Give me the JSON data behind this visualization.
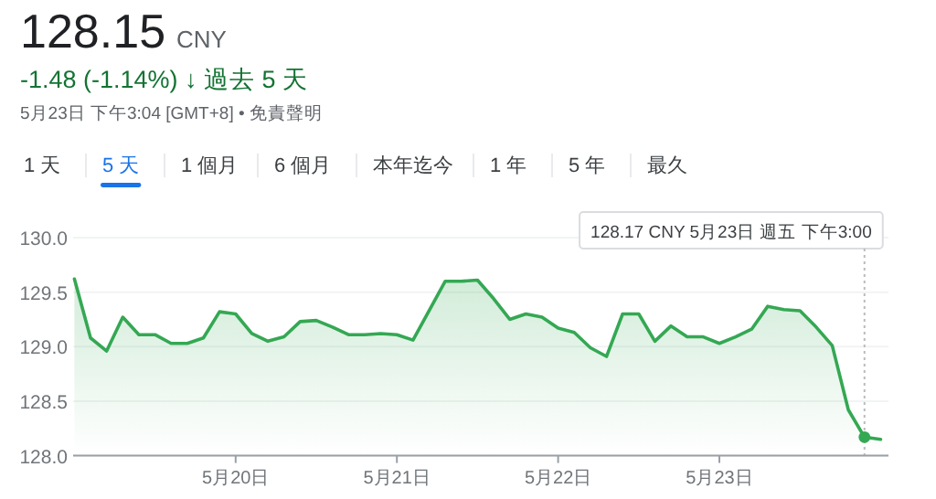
{
  "chart_data": {
    "type": "area",
    "title": "128.15",
    "subtitle": "-1.48 (-1.14%) ↓ 過去 5 天",
    "annotations": [
      "CNY",
      "5月23日 下午3:04 [GMT+8] • 免責聲明",
      "1 天",
      "5 天",
      "1 個月",
      "6 個月",
      "本年迄今",
      "1 年",
      "5 年",
      "最久",
      "128.17 CNY  5月23日 週五 下午3:00"
    ],
    "categories": [
      null,
      null,
      null,
      null,
      null,
      null,
      null,
      null,
      null,
      null,
      "5月20日",
      null,
      null,
      null,
      null,
      null,
      null,
      null,
      null,
      null,
      "5月21日",
      null,
      null,
      null,
      null,
      null,
      null,
      null,
      null,
      null,
      "5月22日",
      null,
      null,
      null,
      null,
      null,
      null,
      null,
      null,
      null,
      "5月23日",
      null,
      null,
      null,
      null,
      null,
      null,
      null,
      null,
      null,
      null
    ],
    "series": [
      {
        "color": "#34a853",
        "values": [
          129.62,
          129.08,
          128.96,
          129.27,
          129.11,
          129.11,
          129.03,
          129.03,
          129.08,
          129.32,
          129.3,
          129.12,
          129.05,
          129.09,
          129.23,
          129.24,
          129.18,
          129.11,
          129.11,
          129.12,
          129.11,
          129.06,
          129.33,
          129.6,
          129.6,
          129.61,
          129.44,
          129.25,
          129.3,
          129.27,
          129.17,
          129.13,
          128.99,
          128.91,
          129.3,
          129.3,
          129.05,
          129.19,
          129.09,
          129.09,
          129.03,
          129.09,
          129.16,
          129.37,
          129.34,
          129.33,
          129.18,
          129.01,
          128.42,
          128.17,
          128.15
        ]
      },
      {
        "type": "scatter",
        "marker": "circle",
        "color": "#34a853",
        "values": [
          null,
          null,
          null,
          null,
          null,
          null,
          null,
          null,
          null,
          null,
          null,
          null,
          null,
          null,
          null,
          null,
          null,
          null,
          null,
          null,
          null,
          null,
          null,
          null,
          null,
          null,
          null,
          null,
          null,
          null,
          null,
          null,
          null,
          null,
          null,
          null,
          null,
          null,
          null,
          null,
          null,
          null,
          null,
          null,
          null,
          null,
          null,
          null,
          null,
          128.17,
          null
        ]
      }
    ],
    "ylim": [
      128.0,
      130.0
    ],
    "yticks": [
      {
        "value": 128.0,
        "label": "128.0"
      },
      {
        "value": 128.5,
        "label": "128.5"
      },
      {
        "value": 129.0,
        "label": "129.0"
      },
      {
        "value": 129.5,
        "label": "129.5"
      },
      {
        "value": 130.0,
        "label": "130.0"
      }
    ],
    "grid": "y",
    "line_style": "solid"
  }
}
